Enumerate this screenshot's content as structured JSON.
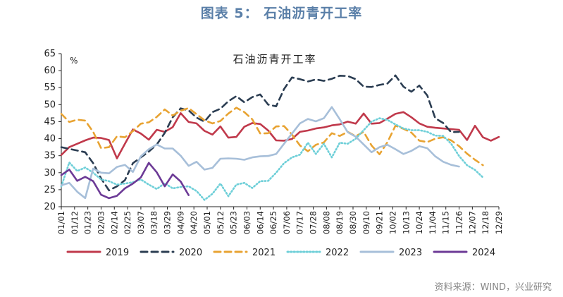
{
  "figure_title": "图表 5：  石油沥青开工率",
  "source_note": "资料来源：WIND，兴业研究",
  "chart_data": {
    "type": "line",
    "title": "石油沥青开工率",
    "ylabel": "%",
    "xlabel": "",
    "ylim": [
      20,
      65
    ],
    "yticks": [
      20,
      25,
      30,
      35,
      40,
      45,
      50,
      55,
      60,
      65
    ],
    "grid": false,
    "legend_position": "bottom",
    "x_ticks": [
      "01/01",
      "01/12",
      "01/23",
      "02/03",
      "02/14",
      "02/25",
      "03/07",
      "03/18",
      "03/29",
      "04/09",
      "04/20",
      "05/01",
      "05/12",
      "05/23",
      "06/03",
      "06/14",
      "06/25",
      "07/06",
      "07/17",
      "07/28",
      "08/08",
      "08/19",
      "08/30",
      "09/10",
      "09/21",
      "10/02",
      "10/13",
      "10/24",
      "11/04",
      "11/15",
      "11/26",
      "12/07",
      "12/18",
      "12/29"
    ],
    "series": [
      {
        "name": "2019",
        "color": "#c0394b",
        "style": "solid",
        "values": [
          35.2,
          37.5,
          38.5,
          39.5,
          40.3,
          40.2,
          39.6,
          34.2,
          38.5,
          42.7,
          41.5,
          39.7,
          42.6,
          42.0,
          43.4,
          47.5,
          44.9,
          44.5,
          42.3,
          41.2,
          43.6,
          40.3,
          40.5,
          43.5,
          44.6,
          44.3,
          42.4,
          39.5,
          39.4,
          39.9,
          42.0,
          42.4,
          43.0,
          43.3,
          43.9,
          44.2,
          45.0,
          44.4,
          47.4,
          44.4,
          44.6,
          45.9,
          47.3,
          47.8,
          46.3,
          44.5,
          43.5,
          43.2,
          43.0,
          42.8,
          42.6,
          39.6,
          43.8,
          40.4,
          39.4,
          40.5
        ]
      },
      {
        "name": "2020",
        "color": "#2b3d52",
        "style": "dash",
        "values": [
          37.5,
          37.0,
          36.5,
          36.0,
          32.8,
          28.3,
          24.8,
          26.0,
          27.8,
          32.8,
          34.5,
          36.2,
          38.3,
          41.7,
          46.3,
          48.9,
          48.3,
          46.2,
          45.0,
          47.8,
          48.8,
          51.0,
          52.5,
          50.7,
          52.2,
          53.0,
          50.0,
          49.5,
          54.6,
          58.0,
          57.5,
          56.8,
          57.4,
          57.0,
          57.6,
          58.5,
          58.4,
          57.5,
          55.3,
          55.2,
          55.8,
          56.2,
          58.6,
          55.3,
          53.8,
          55.6,
          52.7,
          46.0,
          44.6,
          41.9,
          42.0
        ]
      },
      {
        "name": "2021",
        "color": "#e8a332",
        "style": "dash",
        "values": [
          47.3,
          44.9,
          45.6,
          45.3,
          42.0,
          37.2,
          37.5,
          40.7,
          40.4,
          42.2,
          44.4,
          44.8,
          46.4,
          48.6,
          46.8,
          48.2,
          49.0,
          47.2,
          45.4,
          44.5,
          45.2,
          47.4,
          49.1,
          47.8,
          45.7,
          41.5,
          41.6,
          43.6,
          43.7,
          41.2,
          38.0,
          36.3,
          38.2,
          38.9,
          41.6,
          40.8,
          42.0,
          40.7,
          42.0,
          38.0,
          35.4,
          39.0,
          43.8,
          42.9,
          41.8,
          39.4,
          39.0,
          40.0,
          40.4,
          39.5,
          37.8,
          35.6,
          33.8,
          32.2
        ]
      },
      {
        "name": "2022",
        "color": "#6ecfd8",
        "style": "dot",
        "values": [
          26.0,
          33.0,
          30.5,
          31.5,
          30.0,
          28.0,
          27.5,
          26.5,
          26.8,
          27.2,
          28.0,
          26.5,
          25.2,
          26.9,
          25.4,
          25.8,
          26.0,
          24.6,
          22.0,
          23.8,
          26.8,
          23.1,
          26.5,
          27.0,
          25.5,
          27.5,
          27.6,
          30.0,
          32.8,
          34.5,
          35.3,
          38.8,
          35.5,
          38.5,
          34.5,
          38.8,
          38.5,
          40.0,
          42.5,
          45.0,
          46.0,
          45.5,
          44.2,
          43.0,
          42.5,
          42.5,
          42.0,
          40.9,
          40.8,
          38.5,
          34.9,
          32.2,
          30.8,
          28.6
        ]
      },
      {
        "name": "2023",
        "color": "#a7bfd9",
        "style": "solid",
        "values": [
          26.3,
          27.0,
          24.4,
          22.5,
          31.2,
          30.0,
          29.8,
          31.7,
          32.3,
          30.2,
          34.8,
          36.9,
          38.3,
          37.1,
          37.1,
          35.0,
          32.0,
          33.2,
          30.9,
          31.4,
          34.1,
          34.2,
          34.1,
          33.8,
          34.5,
          34.8,
          34.9,
          35.5,
          38.5,
          41.5,
          44.5,
          45.8,
          45.1,
          46.0,
          49.3,
          45.7,
          41.9,
          40.6,
          38.3,
          36.0,
          37.5,
          38.2,
          36.9,
          35.5,
          36.4,
          37.8,
          37.2,
          34.8,
          33.2,
          32.3,
          31.8
        ]
      },
      {
        "name": "2024",
        "color": "#6c3a96",
        "style": "solid",
        "values": [
          29.3,
          30.9,
          27.6,
          28.8,
          27.5,
          23.5,
          22.5,
          23.2,
          25.4,
          26.8,
          28.6,
          32.9,
          30.1,
          26.0,
          29.5,
          27.4,
          23.4
        ]
      }
    ]
  }
}
